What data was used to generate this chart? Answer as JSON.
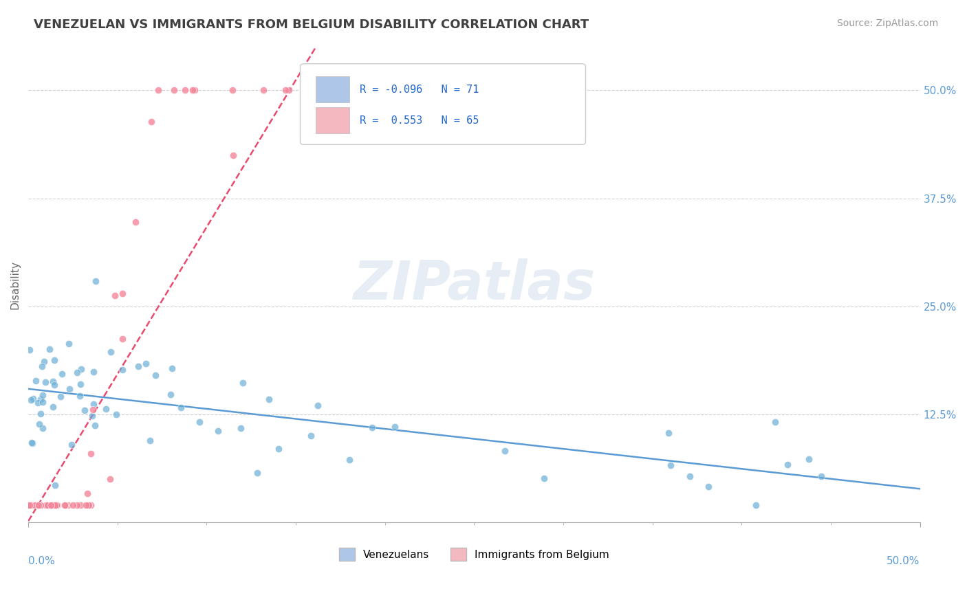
{
  "title": "VENEZUELAN VS IMMIGRANTS FROM BELGIUM DISABILITY CORRELATION CHART",
  "source": "Source: ZipAtlas.com",
  "ylabel": "Disability",
  "yticklabels": [
    "12.5%",
    "25.0%",
    "37.5%",
    "50.0%"
  ],
  "yticks": [
    0.125,
    0.25,
    0.375,
    0.5
  ],
  "xlim": [
    0.0,
    0.5
  ],
  "ylim": [
    0.0,
    0.55
  ],
  "venezuelan_R": -0.096,
  "belgium_R": 0.553,
  "venezuelan_color": "#6aaed6",
  "belgium_color": "#f4869a",
  "venezuelan_line_color": "#5b9bd5",
  "belgium_line_color": "#e84b6e",
  "ven_legend_color": "#aec6e8",
  "bel_legend_color": "#f4b8c1",
  "background_color": "#ffffff",
  "grid_color": "#d0d0d0",
  "title_color": "#404040",
  "axis_label_color": "#5b9bd5",
  "legend_text_color": "#2266cc",
  "venezuelan_N": 71,
  "belgium_N": 65
}
